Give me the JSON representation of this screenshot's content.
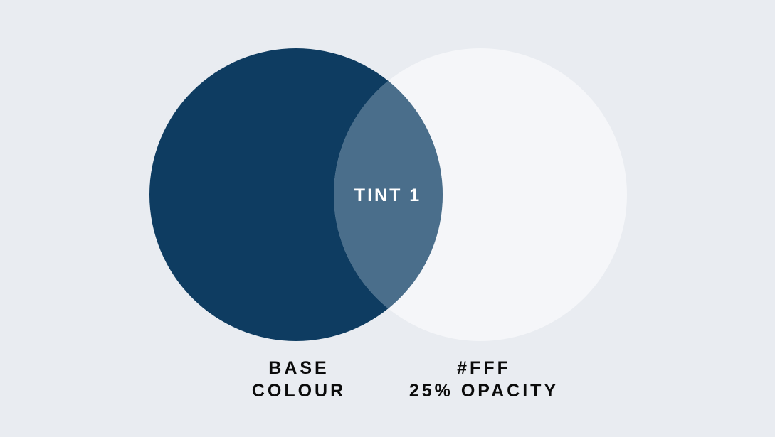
{
  "diagram": {
    "type": "venn",
    "base_circle": {
      "color": "#0e3c61",
      "label_line1": "BASE",
      "label_line2": "COLOUR"
    },
    "overlay_circle": {
      "color": "#ffffff",
      "opacity": 0.25,
      "label_line1": "#FFF",
      "label_line2": "25% OPACITY"
    },
    "intersection": {
      "color": "#4a6e8b",
      "label": "TINT 1"
    }
  },
  "colors": {
    "background": "#e9ecf1",
    "label_text": "#0b0b0b"
  }
}
